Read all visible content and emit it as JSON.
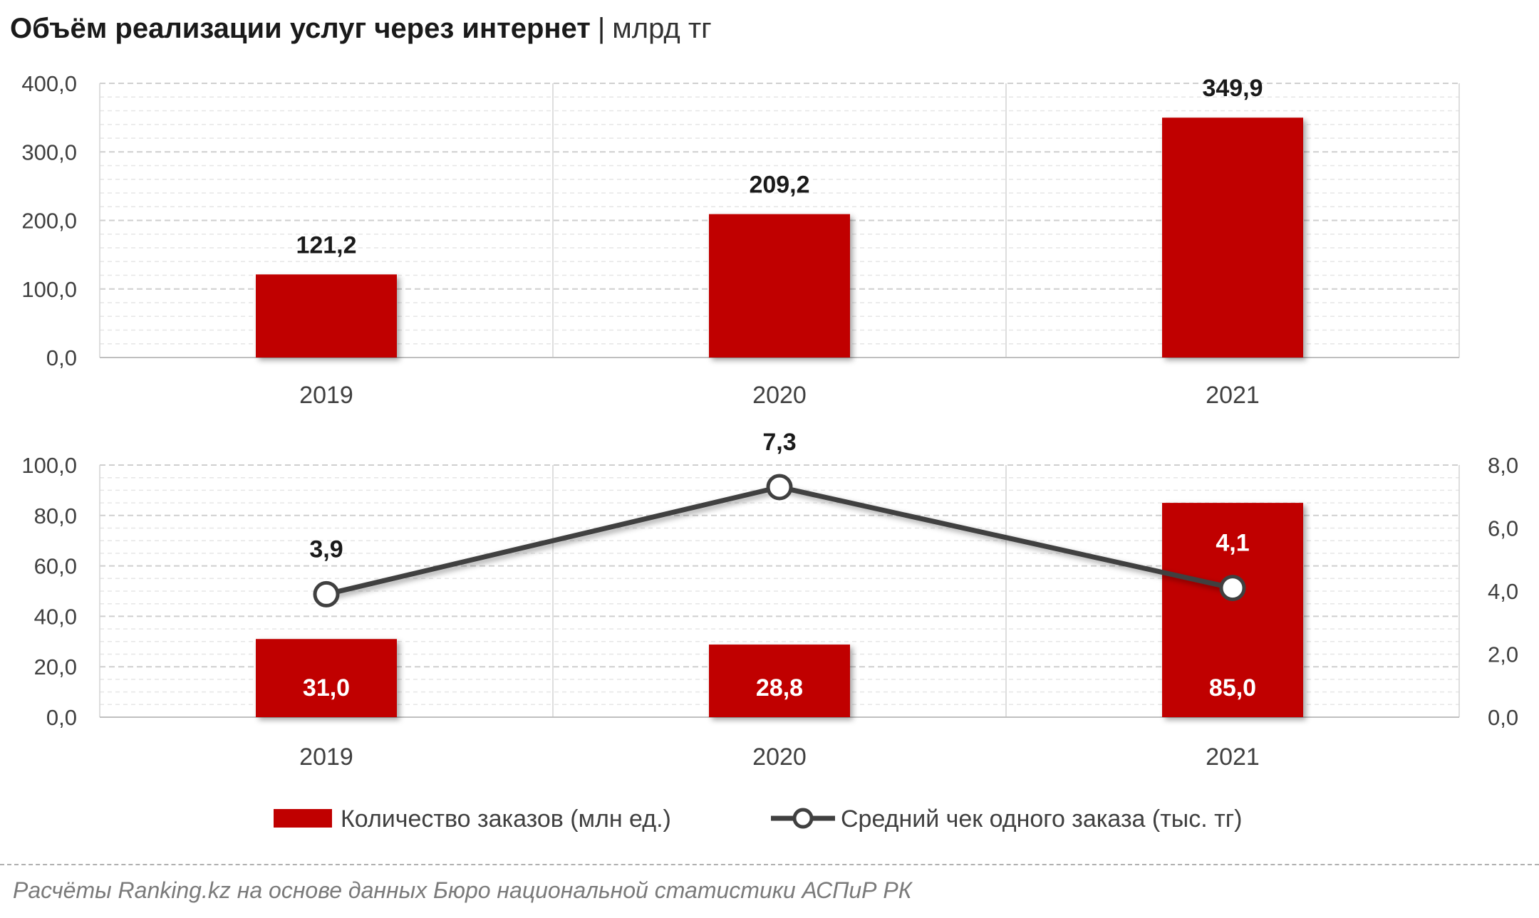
{
  "title": {
    "main": "Объём реализации услуг через интернет",
    "separator": "|",
    "unit": "млрд тг"
  },
  "chart_data": [
    {
      "type": "bar",
      "categories": [
        "2019",
        "2020",
        "2021"
      ],
      "values": [
        121.2,
        209.2,
        349.9
      ],
      "value_labels": [
        "121,2",
        "209,2",
        "349,9"
      ],
      "ylim": [
        0,
        400
      ],
      "yticks": [
        "0,0",
        "100,0",
        "200,0",
        "300,0",
        "400,0"
      ],
      "color": "#c00000",
      "grid": true
    },
    {
      "type": "bar+line",
      "categories": [
        "2019",
        "2020",
        "2021"
      ],
      "series": [
        {
          "name": "Количество заказов (млн ед.)",
          "kind": "bar",
          "axis": "left",
          "values": [
            31.0,
            28.8,
            85.0
          ],
          "value_labels": [
            "31,0",
            "28,8",
            "85,0"
          ],
          "color": "#c00000"
        },
        {
          "name": "Средний чек одного заказа (тыс. тг)",
          "kind": "line",
          "axis": "right",
          "values": [
            3.9,
            7.3,
            4.1
          ],
          "value_labels": [
            "3,9",
            "7,3",
            "4,1"
          ],
          "color": "#404040"
        }
      ],
      "ylim_left": [
        0,
        100
      ],
      "yticks_left": [
        "0,0",
        "20,0",
        "40,0",
        "60,0",
        "80,0",
        "100,0"
      ],
      "ylim_right": [
        0,
        8
      ],
      "yticks_right": [
        "0,0",
        "2,0",
        "4,0",
        "6,0",
        "8,0"
      ],
      "legend": "bottom",
      "grid": true
    }
  ],
  "source": "Расчёты Ranking.kz на основе данных Бюро национальной статистики АСПиР РК"
}
